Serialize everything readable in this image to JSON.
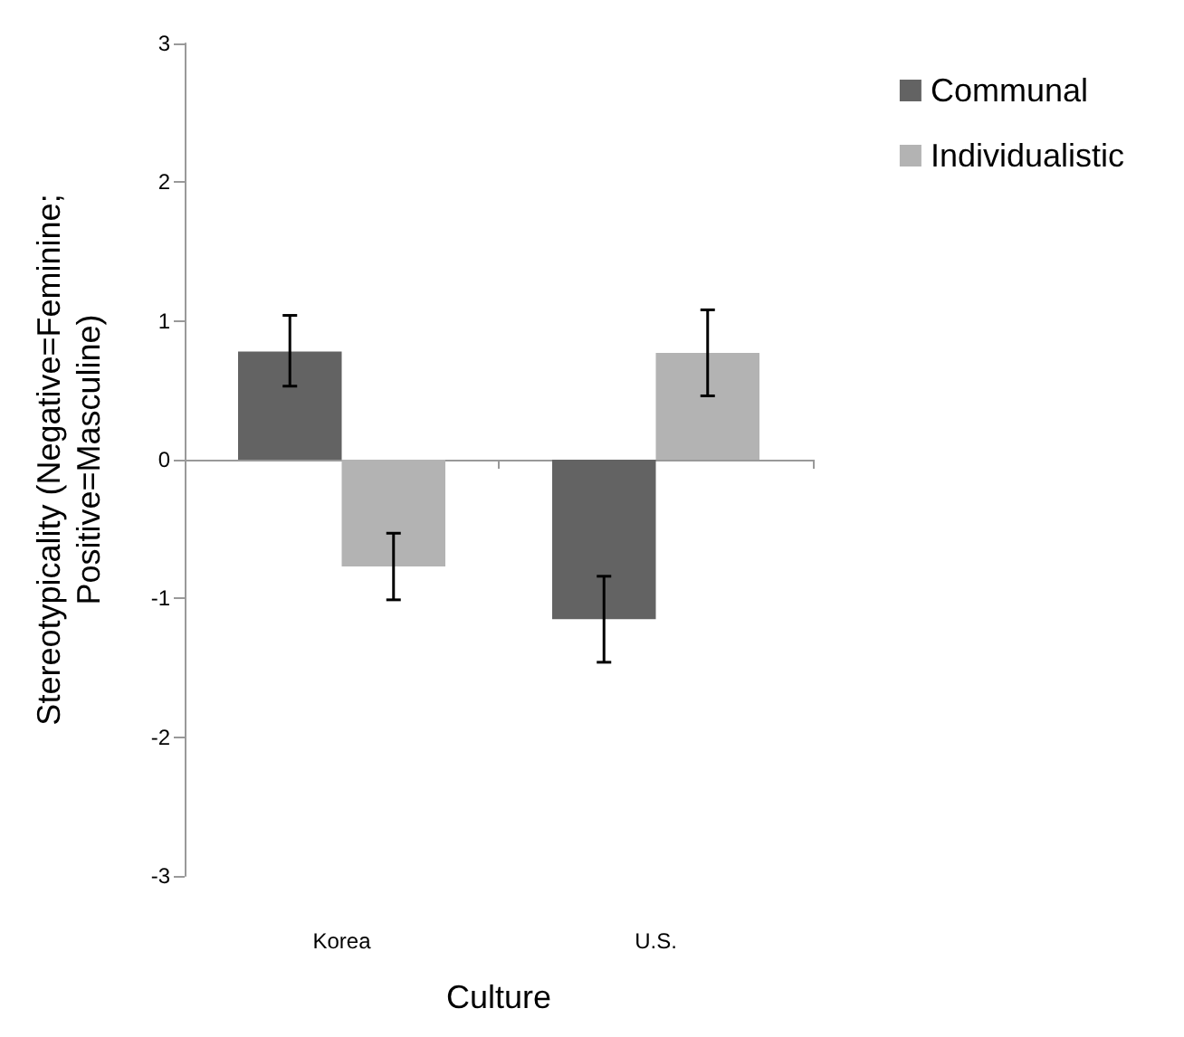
{
  "chart_data": {
    "type": "bar",
    "xlabel": "Culture",
    "ylabel": "Stereotypicality (Negative=Feminine;\nPositive=Masculine)",
    "categories": [
      "Korea",
      "U.S."
    ],
    "series": [
      {
        "name": "Communal",
        "color": "#636363",
        "values": [
          0.78,
          -1.15
        ],
        "errors": [
          [
            0.53,
            1.04
          ],
          [
            -1.46,
            -0.84
          ]
        ]
      },
      {
        "name": "Individualistic",
        "color": "#b3b3b3",
        "values": [
          -0.77,
          0.77
        ],
        "errors": [
          [
            -1.01,
            -0.53
          ],
          [
            0.46,
            1.08
          ]
        ]
      }
    ],
    "ylim": [
      -3,
      3
    ],
    "yticks": [
      -3,
      -2,
      -1,
      0,
      1,
      2,
      3
    ],
    "legend": "top right"
  }
}
